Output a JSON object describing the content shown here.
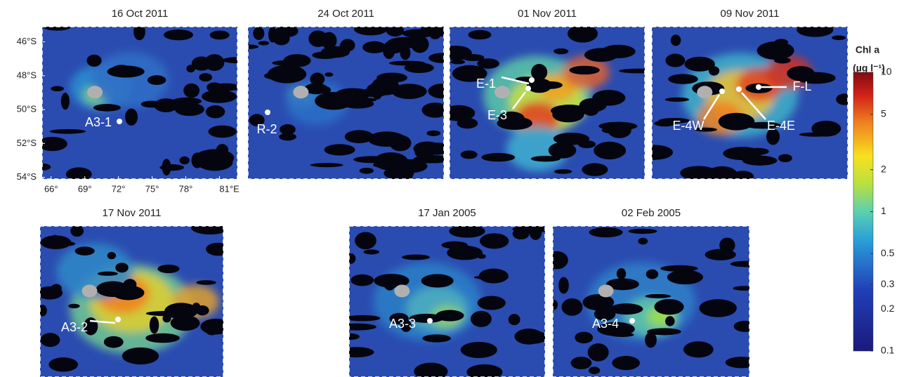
{
  "panels": [
    {
      "title": "16 Oct 2011",
      "stations": [
        "A3-1"
      ]
    },
    {
      "title": "24 Oct 2011",
      "stations": [
        "R-2"
      ]
    },
    {
      "title": "01 Nov 2011",
      "stations": [
        "E-1",
        "E-3"
      ]
    },
    {
      "title": "09 Nov 2011",
      "stations": [
        "E-4W",
        "E-4E",
        "F-L"
      ]
    },
    {
      "title": "17 Nov 2011",
      "stations": [
        "A3-2"
      ]
    },
    {
      "title": "17 Jan 2005",
      "stations": [
        "A3-3"
      ]
    },
    {
      "title": "02 Feb 2005",
      "stations": [
        "A3-4"
      ]
    }
  ],
  "map_axes": {
    "latlim": [
      -54.1,
      -45.1
    ],
    "lonlim": [
      65.2,
      82.6
    ],
    "lat_ticks": [
      {
        "value": -46,
        "label": "46°S"
      },
      {
        "value": -48,
        "label": "48°S"
      },
      {
        "value": -50,
        "label": "50°S"
      },
      {
        "value": -52,
        "label": "52°S"
      },
      {
        "value": -54,
        "label": "54°S"
      }
    ],
    "lon_ticks": [
      {
        "value": 66,
        "label": "66°"
      },
      {
        "value": 69,
        "label": "69°"
      },
      {
        "value": 72,
        "label": "72°"
      },
      {
        "value": 75,
        "label": "75°"
      },
      {
        "value": 78,
        "label": "78°"
      },
      {
        "value": 81,
        "label": "81°E"
      }
    ]
  },
  "colorbar": {
    "title": "Chl a",
    "unit": "(µg l⁻¹)",
    "log_scale": true,
    "lim": [
      0.1,
      10
    ],
    "ticks": [
      0.1,
      0.2,
      0.3,
      0.5,
      1,
      2,
      5,
      10
    ]
  }
}
